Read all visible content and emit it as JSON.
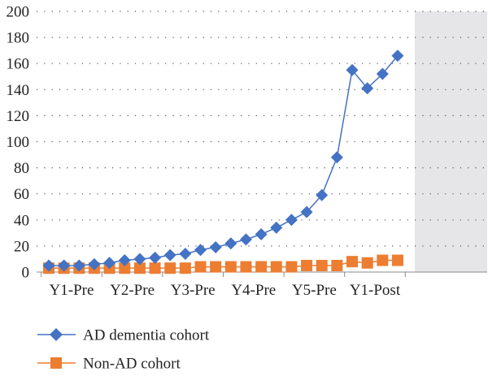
{
  "chart_data": {
    "type": "line",
    "title": "",
    "xlabel": "",
    "ylabel": "",
    "ylim": [
      0,
      200
    ],
    "yticks": [
      "0",
      "20",
      "40",
      "60",
      "80",
      "100",
      "120",
      "140",
      "160",
      "180",
      "200"
    ],
    "x_group_labels": [
      "Y1-Pre",
      "Y2-Pre",
      "Y3-Pre",
      "Y4-Pre",
      "Y5-Pre",
      "Y1-Post"
    ],
    "points_per_group": 4,
    "shaded_region": "Y1-Post",
    "grid": "dotted horizontal",
    "legend_position": "bottom-left",
    "series": [
      {
        "name": "AD dementia cohort",
        "marker": "diamond",
        "color": "#4472C4",
        "values": [
          5,
          5,
          5,
          6,
          7,
          9,
          10,
          11,
          13,
          14,
          17,
          19,
          22,
          25,
          29,
          34,
          40,
          46,
          59,
          88,
          155,
          141,
          152,
          166
        ]
      },
      {
        "name": "Non-AD cohort",
        "marker": "square",
        "color": "#ED7D31",
        "values": [
          3,
          3,
          3,
          3,
          3,
          3,
          3,
          3,
          3,
          3,
          4,
          4,
          4,
          4,
          4,
          4,
          4,
          5,
          5,
          5,
          8,
          7,
          9,
          9
        ]
      }
    ]
  }
}
